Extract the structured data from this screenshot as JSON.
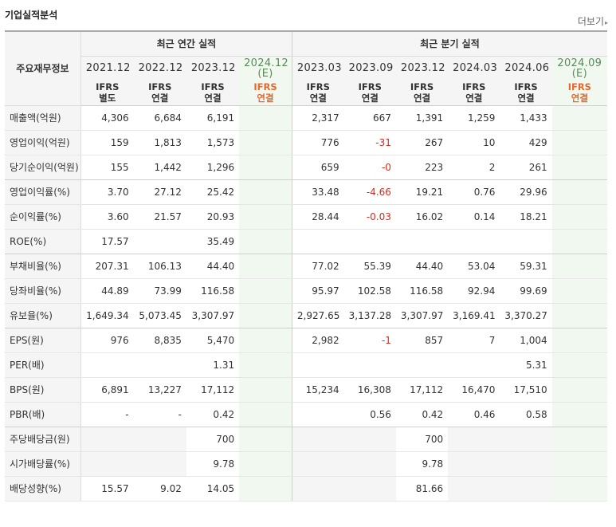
{
  "header": {
    "title": "기업실적분석",
    "more_label": "더보기",
    "more_arrow": "▸"
  },
  "table": {
    "corner_label": "주요재무정보",
    "annual_group_label": "최근 연간 실적",
    "quarter_group_label": "최근 분기 실적",
    "annual_periods": [
      "2021.12",
      "2022.12",
      "2023.12",
      "2024.12"
    ],
    "annual_estimate_label": "(E)",
    "quarter_periods": [
      "2023.03",
      "2023.09",
      "2023.12",
      "2024.03",
      "2024.06",
      "2024.09"
    ],
    "quarter_estimate_label": "(E)",
    "annual_standards": [
      [
        "IFRS",
        "별도"
      ],
      [
        "IFRS",
        "연결"
      ],
      [
        "IFRS",
        "연결"
      ],
      [
        "IFRS",
        "연결"
      ]
    ],
    "quarter_standards": [
      [
        "IFRS",
        "연결"
      ],
      [
        "IFRS",
        "연결"
      ],
      [
        "IFRS",
        "연결"
      ],
      [
        "IFRS",
        "연결"
      ],
      [
        "IFRS",
        "연결"
      ],
      [
        "IFRS",
        "연결"
      ]
    ],
    "rows": [
      {
        "label": "매출액(억원)",
        "annual": [
          "4,306",
          "6,684",
          "6,191",
          ""
        ],
        "quarter": [
          "2,317",
          "667",
          "1,391",
          "1,259",
          "1,433",
          ""
        ]
      },
      {
        "label": "영업이익(억원)",
        "annual": [
          "159",
          "1,813",
          "1,573",
          ""
        ],
        "quarter": [
          "776",
          "-31",
          "267",
          "10",
          "429",
          ""
        ]
      },
      {
        "label": "당기순이익(억원)",
        "annual": [
          "155",
          "1,442",
          "1,296",
          ""
        ],
        "quarter": [
          "659",
          "-0",
          "223",
          "2",
          "261",
          ""
        ]
      },
      {
        "label": "영업이익률(%)",
        "annual": [
          "3.70",
          "27.12",
          "25.42",
          ""
        ],
        "quarter": [
          "33.48",
          "-4.66",
          "19.21",
          "0.76",
          "29.96",
          ""
        ]
      },
      {
        "label": "순이익률(%)",
        "annual": [
          "3.60",
          "21.57",
          "20.93",
          ""
        ],
        "quarter": [
          "28.44",
          "-0.03",
          "16.02",
          "0.14",
          "18.21",
          ""
        ]
      },
      {
        "label": "ROE(%)",
        "annual": [
          "17.57",
          "",
          "35.49",
          ""
        ],
        "quarter": [
          "",
          "",
          "",
          "",
          "",
          ""
        ]
      },
      {
        "label": "부채비율(%)",
        "annual": [
          "207.31",
          "106.13",
          "44.40",
          ""
        ],
        "quarter": [
          "77.02",
          "55.39",
          "44.40",
          "53.04",
          "59.31",
          ""
        ]
      },
      {
        "label": "당좌비율(%)",
        "annual": [
          "44.89",
          "73.99",
          "116.58",
          ""
        ],
        "quarter": [
          "95.97",
          "102.58",
          "116.58",
          "92.94",
          "99.69",
          ""
        ]
      },
      {
        "label": "유보율(%)",
        "annual": [
          "1,649.34",
          "5,073.45",
          "3,307.97",
          ""
        ],
        "quarter": [
          "2,927.65",
          "3,137.28",
          "3,307.97",
          "3,169.41",
          "3,370.27",
          ""
        ]
      },
      {
        "label": "EPS(원)",
        "annual": [
          "976",
          "8,835",
          "5,470",
          ""
        ],
        "quarter": [
          "2,982",
          "-1",
          "857",
          "7",
          "1,004",
          ""
        ]
      },
      {
        "label": "PER(배)",
        "annual": [
          "",
          "",
          "1.31",
          ""
        ],
        "quarter": [
          "",
          "",
          "",
          "",
          "5.31",
          ""
        ]
      },
      {
        "label": "BPS(원)",
        "annual": [
          "6,891",
          "13,227",
          "17,112",
          ""
        ],
        "quarter": [
          "15,234",
          "16,308",
          "17,112",
          "16,470",
          "17,510",
          ""
        ]
      },
      {
        "label": "PBR(배)",
        "annual": [
          "-",
          "-",
          "0.42",
          ""
        ],
        "quarter": [
          "",
          "0.56",
          "0.42",
          "0.46",
          "0.58",
          ""
        ]
      },
      {
        "label": "주당배당금(원)",
        "annual": [
          "",
          "",
          "700",
          ""
        ],
        "quarter": [
          "",
          "",
          "700",
          "",
          "",
          ""
        ]
      },
      {
        "label": "시가배당률(%)",
        "annual": [
          "",
          "",
          "9.78",
          ""
        ],
        "quarter": [
          "",
          "",
          "9.78",
          "",
          "",
          ""
        ]
      },
      {
        "label": "배당성향(%)",
        "annual": [
          "15.57",
          "9.02",
          "14.05",
          ""
        ],
        "quarter": [
          "",
          "",
          "81.66",
          "",
          "",
          ""
        ]
      }
    ]
  },
  "colors": {
    "negative": "#e1251b",
    "standard_label": "#e8672e",
    "estimate_bg": "#f1f8ef",
    "header_bg": "#f5f5f5"
  }
}
